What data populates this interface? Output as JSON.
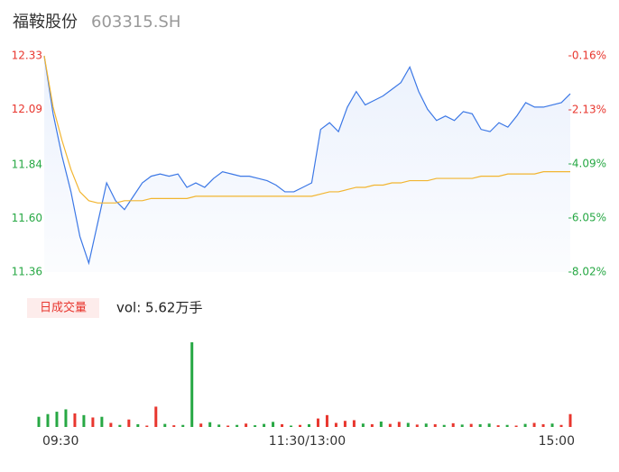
{
  "header": {
    "title": "福鞍股份",
    "code": "603315.SH"
  },
  "chart_data": [
    {
      "type": "line",
      "x_labels": [
        "09:30",
        "11:30/13:00",
        "15:00"
      ],
      "ylim": [
        11.36,
        12.33
      ],
      "yticks": [
        12.33,
        12.09,
        11.84,
        {
          "value": 11.6,
          "label": "11.60"
        },
        11.36
      ],
      "ytick_colors": [
        "#e8362e",
        "#e8362e",
        "#27a844",
        "#27a844",
        "#27a844"
      ],
      "y2lim": [
        -8.02,
        -0.16
      ],
      "y2ticks": [
        {
          "value": -0.16,
          "label": "-0.16%"
        },
        {
          "value": -2.13,
          "label": "-2.13%"
        },
        {
          "value": -4.09,
          "label": "-4.09%"
        },
        {
          "value": -6.05,
          "label": "-6.05%"
        },
        {
          "value": -8.02,
          "label": "-8.02%"
        }
      ],
      "series": [
        {
          "color": "#3c78e6",
          "area": true,
          "values": [
            12.33,
            12.07,
            11.88,
            11.72,
            11.52,
            11.4,
            11.58,
            11.76,
            11.68,
            11.64,
            11.7,
            11.76,
            11.79,
            11.8,
            11.79,
            11.8,
            11.74,
            11.76,
            11.74,
            11.78,
            11.81,
            11.8,
            11.79,
            11.79,
            11.78,
            11.77,
            11.75,
            11.72,
            11.72,
            11.74,
            11.76,
            12.0,
            12.03,
            11.99,
            12.1,
            12.17,
            12.11,
            12.13,
            12.15,
            12.18,
            12.21,
            12.28,
            12.17,
            12.09,
            12.04,
            12.06,
            12.04,
            12.08,
            12.07,
            12.0,
            11.99,
            12.03,
            12.01,
            12.06,
            12.12,
            12.1,
            12.1,
            12.11,
            12.12,
            12.16
          ]
        },
        {
          "color": "#f2b530",
          "values": [
            12.33,
            12.1,
            11.95,
            11.82,
            11.72,
            11.68,
            11.67,
            11.67,
            11.67,
            11.68,
            11.68,
            11.68,
            11.69,
            11.69,
            11.69,
            11.69,
            11.69,
            11.7,
            11.7,
            11.7,
            11.7,
            11.7,
            11.7,
            11.7,
            11.7,
            11.7,
            11.7,
            11.7,
            11.7,
            11.7,
            11.7,
            11.71,
            11.72,
            11.72,
            11.73,
            11.74,
            11.74,
            11.75,
            11.75,
            11.76,
            11.76,
            11.77,
            11.77,
            11.77,
            11.78,
            11.78,
            11.78,
            11.78,
            11.78,
            11.79,
            11.79,
            11.79,
            11.8,
            11.8,
            11.8,
            11.8,
            11.81,
            11.81,
            11.81,
            11.81
          ]
        }
      ]
    },
    {
      "type": "bar",
      "badge": "日成交量",
      "label": "vol: 5.62万手",
      "ylim": [
        0,
        2500
      ],
      "values": [
        300,
        380,
        450,
        520,
        400,
        350,
        280,
        300,
        120,
        60,
        220,
        80,
        40,
        600,
        90,
        50,
        60,
        2500,
        100,
        140,
        70,
        40,
        60,
        100,
        50,
        90,
        150,
        80,
        40,
        60,
        80,
        250,
        350,
        120,
        180,
        200,
        100,
        80,
        160,
        90,
        150,
        120,
        70,
        100,
        80,
        60,
        110,
        70,
        90,
        80,
        100,
        50,
        60,
        40,
        90,
        120,
        80,
        100,
        60,
        380
      ],
      "colors": [
        "#27a844",
        "#27a844",
        "#27a844",
        "#27a844",
        "#e8362e",
        "#27a844",
        "#e8362e",
        "#27a844",
        "#e8362e",
        "#27a844",
        "#e8362e",
        "#27a844",
        "#e8362e",
        "#e8362e",
        "#27a844",
        "#e8362e",
        "#27a844",
        "#27a844",
        "#e8362e",
        "#27a844",
        "#27a844",
        "#e8362e",
        "#27a844",
        "#e8362e",
        "#27a844",
        "#27a844",
        "#27a844",
        "#e8362e",
        "#27a844",
        "#e8362e",
        "#27a844",
        "#e8362e",
        "#e8362e",
        "#e8362e",
        "#e8362e",
        "#e8362e",
        "#27a844",
        "#e8362e",
        "#27a844",
        "#e8362e",
        "#e8362e",
        "#27a844",
        "#e8362e",
        "#27a844",
        "#e8362e",
        "#27a844",
        "#e8362e",
        "#27a844",
        "#e8362e",
        "#27a844",
        "#27a844",
        "#e8362e",
        "#27a844",
        "#e8362e",
        "#27a844",
        "#e8362e",
        "#e8362e",
        "#27a844",
        "#e8362e",
        "#e8362e"
      ]
    }
  ]
}
